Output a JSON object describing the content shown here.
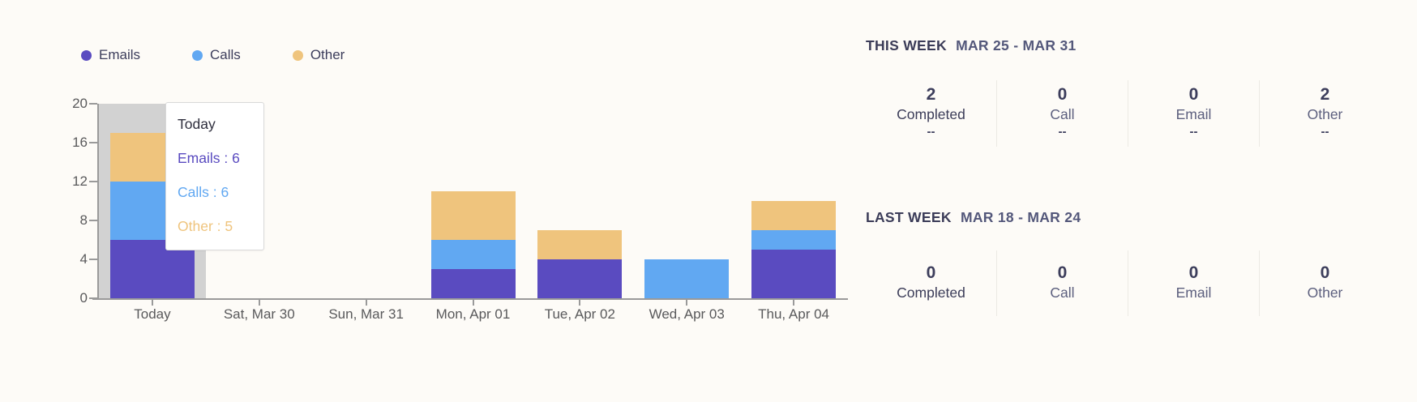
{
  "colors": {
    "background": "#FDFBF7",
    "emails": "#5A4BC0",
    "calls": "#61A8F2",
    "other": "#EFC47D",
    "highlight_band": "#D2D2D2",
    "axis": "#9A9A9A",
    "heading_dark": "#3B3C58",
    "heading_light": "#53577A"
  },
  "chart_data": {
    "type": "bar",
    "stacked": true,
    "title": "",
    "xlabel": "",
    "ylabel": "",
    "categories": [
      "Today",
      "Sat, Mar 30",
      "Sun, Mar 31",
      "Mon, Apr 01",
      "Tue, Apr 02",
      "Wed, Apr 03",
      "Thu, Apr 04"
    ],
    "series": [
      {
        "name": "Emails",
        "color": "#5A4BC0",
        "values": [
          6,
          0,
          0,
          3,
          4,
          0,
          5
        ]
      },
      {
        "name": "Calls",
        "color": "#61A8F2",
        "values": [
          6,
          0,
          0,
          3,
          0,
          4,
          2
        ]
      },
      {
        "name": "Other",
        "color": "#EFC47D",
        "values": [
          5,
          0,
          0,
          5,
          3,
          0,
          3
        ]
      }
    ],
    "ylim": [
      0,
      20
    ],
    "yticks": [
      0,
      4,
      8,
      12,
      16,
      20
    ],
    "grid": false,
    "legend_position": "top-left",
    "highlighted_category": "Today"
  },
  "tooltip": {
    "title": "Today",
    "rows": [
      {
        "label": "Emails",
        "value": 6,
        "text": "Emails : 6",
        "color": "#5A4BC0"
      },
      {
        "label": "Calls",
        "value": 6,
        "text": "Calls : 6",
        "color": "#61A8F2"
      },
      {
        "label": "Other",
        "value": 5,
        "text": "Other : 5",
        "color": "#EFC47D"
      }
    ]
  },
  "panels": [
    {
      "title": "THIS WEEK",
      "range": "MAR 25 - MAR 31",
      "stats": [
        {
          "value": "2",
          "label": "Completed",
          "sub": "--"
        },
        {
          "value": "0",
          "label": "Call",
          "sub": "--"
        },
        {
          "value": "0",
          "label": "Email",
          "sub": "--"
        },
        {
          "value": "2",
          "label": "Other",
          "sub": "--"
        }
      ]
    },
    {
      "title": "LAST WEEK",
      "range": "MAR 18 - MAR 24",
      "stats": [
        {
          "value": "0",
          "label": "Completed"
        },
        {
          "value": "0",
          "label": "Call"
        },
        {
          "value": "0",
          "label": "Email"
        },
        {
          "value": "0",
          "label": "Other"
        }
      ]
    }
  ]
}
